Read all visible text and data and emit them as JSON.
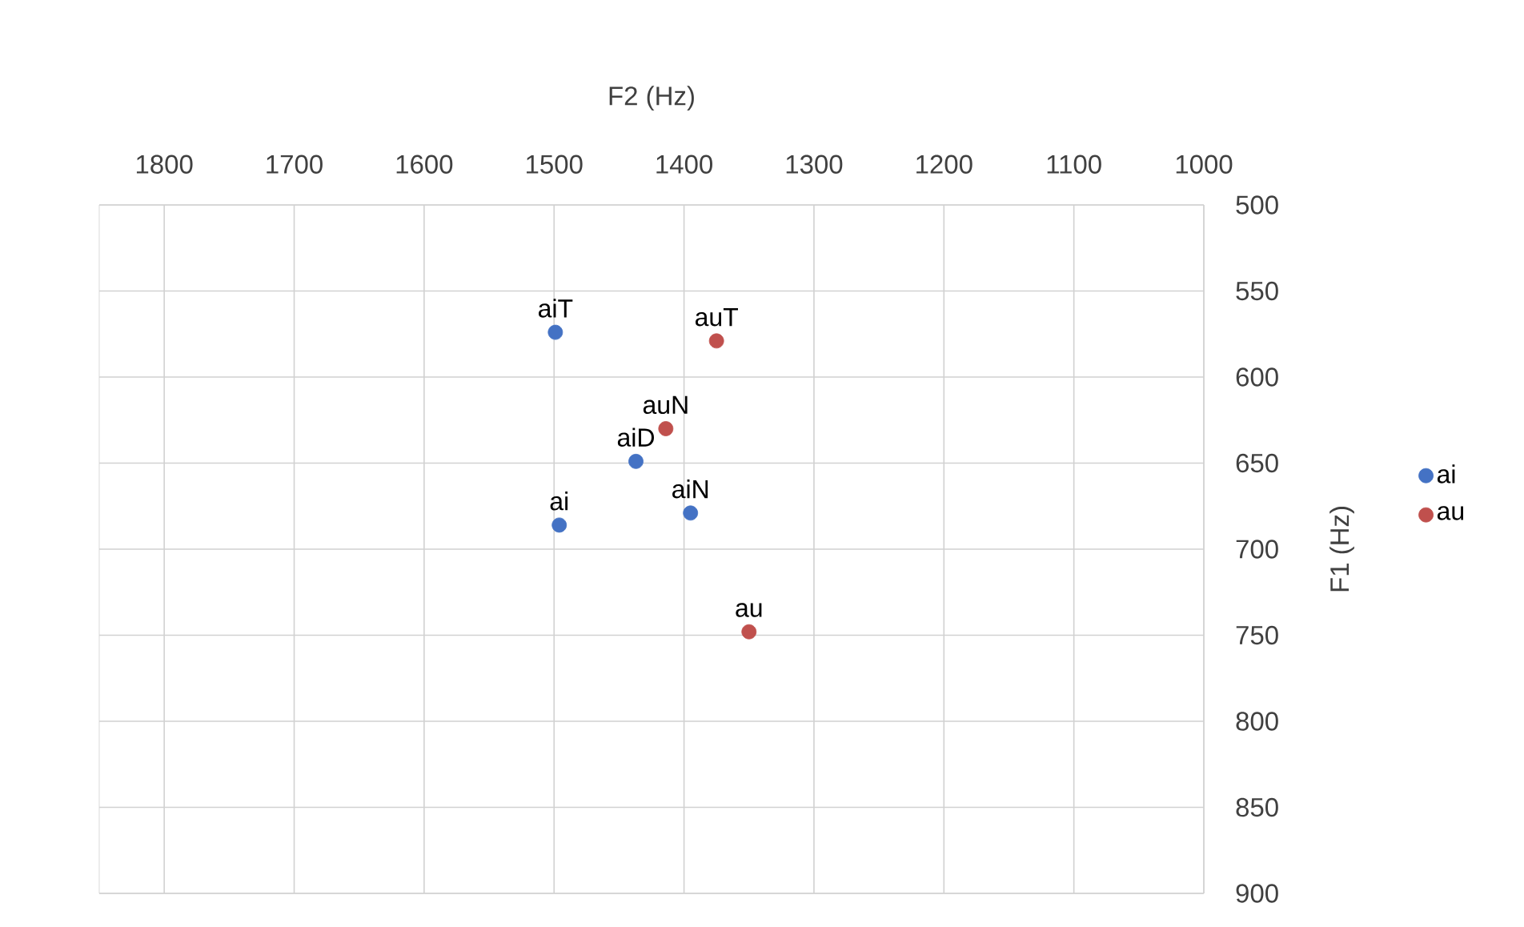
{
  "chart_data": {
    "type": "scatter",
    "xlabel": "F2 (Hz)",
    "ylabel": "F1 (Hz)",
    "xlim": [
      1850,
      1000
    ],
    "xticks": [
      1800,
      1700,
      1600,
      1500,
      1400,
      1300,
      1200,
      1100,
      1000
    ],
    "ylim": [
      900,
      500
    ],
    "yticks": [
      500,
      550,
      600,
      650,
      700,
      750,
      800,
      850,
      900
    ],
    "grid": true,
    "legend": "right",
    "marker": "circle",
    "series": [
      {
        "name": "ai",
        "color": "#4472c4",
        "x": [
          1496,
          1499,
          1437,
          1395
        ],
        "values": [
          686,
          574,
          649,
          679
        ]
      },
      {
        "name": "au",
        "color": "#c0504d",
        "x": [
          1350,
          1375,
          1414
        ],
        "values": [
          748,
          579,
          630
        ]
      }
    ],
    "annotations": [
      {
        "text": "ai",
        "x": 1496,
        "y": 686
      },
      {
        "text": "aiT",
        "x": 1499,
        "y": 574
      },
      {
        "text": "aiD",
        "x": 1437,
        "y": 649
      },
      {
        "text": "aiN",
        "x": 1395,
        "y": 679
      },
      {
        "text": "au",
        "x": 1350,
        "y": 748
      },
      {
        "text": "auT",
        "x": 1375,
        "y": 579
      },
      {
        "text": "auN",
        "x": 1414,
        "y": 630
      }
    ]
  }
}
